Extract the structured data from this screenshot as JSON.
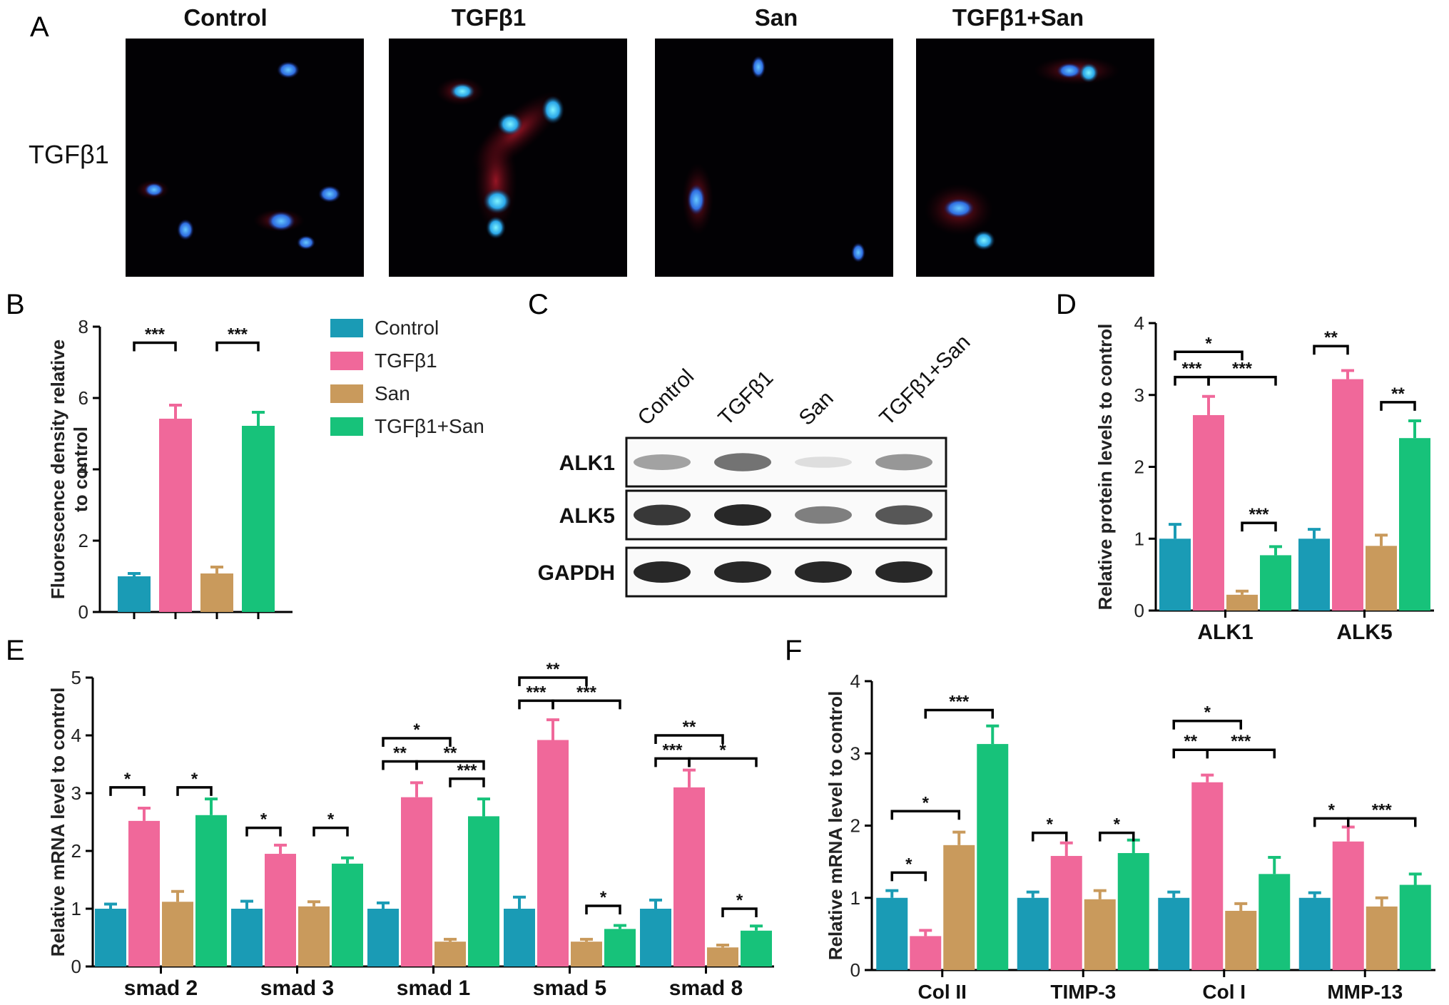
{
  "colors": {
    "Control": "#1a9bb5",
    "TGFβ1": "#f0689a",
    "San": "#c99a5c",
    "TGFβ1+San": "#17c27a"
  },
  "panels": {
    "A": "A",
    "B": "B",
    "C": "C",
    "D": "D",
    "E": "E",
    "F": "F"
  },
  "panelA": {
    "columns": [
      "Control",
      "TGFβ1",
      "San",
      "TGFβ1+San"
    ],
    "row_label": "TGFβ1"
  },
  "legend": [
    "Control",
    "TGFβ1",
    "San",
    "TGFβ1+San"
  ],
  "panelC": {
    "lanes": [
      "Control",
      "TGFβ1",
      "San",
      "TGFβ1+San"
    ],
    "rows": [
      "ALK1",
      "ALK5",
      "GAPDH"
    ],
    "band_intensity": [
      [
        0.55,
        0.75,
        0.2,
        0.6
      ],
      [
        0.95,
        1.0,
        0.7,
        0.85
      ],
      [
        1.0,
        1.0,
        1.0,
        1.0
      ]
    ]
  },
  "chart_data": [
    {
      "id": "B",
      "type": "bar",
      "ylabel": "Fluorescence density relative to control",
      "ylim": [
        0,
        8
      ],
      "yticks": [
        0,
        2,
        4,
        6,
        8
      ],
      "categories": [
        ""
      ],
      "series": [
        {
          "name": "Control",
          "values": [
            1.0
          ],
          "err": [
            0.08
          ]
        },
        {
          "name": "TGFβ1",
          "values": [
            5.42
          ],
          "err": [
            0.38
          ]
        },
        {
          "name": "San",
          "values": [
            1.08
          ],
          "err": [
            0.18
          ]
        },
        {
          "name": "TGFβ1+San",
          "values": [
            5.22
          ],
          "err": [
            0.38
          ]
        }
      ],
      "brackets": [
        {
          "cat": 0,
          "a": 0,
          "b": 1,
          "label": "***",
          "y": 7.55
        },
        {
          "cat": 0,
          "a": 2,
          "b": 3,
          "label": "***",
          "y": 7.55
        }
      ]
    },
    {
      "id": "D",
      "type": "bar",
      "ylabel": "Relative protein levels to control",
      "ylim": [
        0,
        4
      ],
      "yticks": [
        0,
        1,
        2,
        3,
        4
      ],
      "categories": [
        "ALK1",
        "ALK5"
      ],
      "series": [
        {
          "name": "Control",
          "values": [
            1.0,
            1.0
          ],
          "err": [
            0.2,
            0.13
          ]
        },
        {
          "name": "TGFβ1",
          "values": [
            2.72,
            3.22
          ],
          "err": [
            0.26,
            0.12
          ]
        },
        {
          "name": "San",
          "values": [
            0.22,
            0.9
          ],
          "err": [
            0.05,
            0.15
          ]
        },
        {
          "name": "TGFβ1+San",
          "values": [
            0.77,
            2.4
          ],
          "err": [
            0.12,
            0.24
          ]
        }
      ],
      "brackets": [
        {
          "cat": 0,
          "a": 0,
          "b": 2,
          "label": "*",
          "y": 3.6
        },
        {
          "cat": 0,
          "a": 0,
          "b": 1,
          "label": "***",
          "y": 3.25
        },
        {
          "cat": 0,
          "a": 1,
          "b": 3,
          "label": "***",
          "y": 3.25
        },
        {
          "cat": 0,
          "a": 2,
          "b": 3,
          "label": "***",
          "y": 1.22
        },
        {
          "cat": 1,
          "a": 0,
          "b": 1,
          "label": "**",
          "y": 3.68
        },
        {
          "cat": 1,
          "a": 2,
          "b": 3,
          "label": "**",
          "y": 2.9
        }
      ]
    },
    {
      "id": "E",
      "type": "bar",
      "ylabel": "Relative mRNA level to control",
      "ylim": [
        0,
        5
      ],
      "yticks": [
        0,
        1,
        2,
        3,
        4,
        5
      ],
      "categories": [
        "smad 2",
        "smad 3",
        "smad 1",
        "smad 5",
        "smad 8"
      ],
      "series": [
        {
          "name": "Control",
          "values": [
            1.0,
            1.0,
            1.0,
            1.0,
            1.0
          ],
          "err": [
            0.08,
            0.13,
            0.1,
            0.2,
            0.15
          ]
        },
        {
          "name": "TGFβ1",
          "values": [
            2.52,
            1.95,
            2.93,
            3.92,
            3.1
          ],
          "err": [
            0.22,
            0.15,
            0.25,
            0.35,
            0.3
          ]
        },
        {
          "name": "San",
          "values": [
            1.12,
            1.04,
            0.43,
            0.43,
            0.33
          ],
          "err": [
            0.18,
            0.08,
            0.04,
            0.04,
            0.04
          ]
        },
        {
          "name": "TGFβ1+San",
          "values": [
            2.62,
            1.78,
            2.6,
            0.65,
            0.62
          ],
          "err": [
            0.28,
            0.1,
            0.3,
            0.06,
            0.08
          ]
        }
      ],
      "brackets": [
        {
          "cat": 0,
          "a": 0,
          "b": 1,
          "label": "*",
          "y": 3.1
        },
        {
          "cat": 0,
          "a": 2,
          "b": 3,
          "label": "*",
          "y": 3.1
        },
        {
          "cat": 1,
          "a": 0,
          "b": 1,
          "label": "*",
          "y": 2.4
        },
        {
          "cat": 1,
          "a": 2,
          "b": 3,
          "label": "*",
          "y": 2.4
        },
        {
          "cat": 2,
          "a": 0,
          "b": 2,
          "label": "*",
          "y": 3.95
        },
        {
          "cat": 2,
          "a": 0,
          "b": 1,
          "label": "**",
          "y": 3.55
        },
        {
          "cat": 2,
          "a": 1,
          "b": 3,
          "label": "**",
          "y": 3.55
        },
        {
          "cat": 2,
          "a": 2,
          "b": 3,
          "label": "***",
          "y": 3.25
        },
        {
          "cat": 3,
          "a": 0,
          "b": 2,
          "label": "**",
          "y": 5.0
        },
        {
          "cat": 3,
          "a": 0,
          "b": 1,
          "label": "***",
          "y": 4.6
        },
        {
          "cat": 3,
          "a": 1,
          "b": 3,
          "label": "***",
          "y": 4.6
        },
        {
          "cat": 3,
          "a": 2,
          "b": 3,
          "label": "*",
          "y": 1.05
        },
        {
          "cat": 4,
          "a": 0,
          "b": 2,
          "label": "**",
          "y": 4.0
        },
        {
          "cat": 4,
          "a": 0,
          "b": 1,
          "label": "***",
          "y": 3.6
        },
        {
          "cat": 4,
          "a": 1,
          "b": 3,
          "label": "*",
          "y": 3.6
        },
        {
          "cat": 4,
          "a": 2,
          "b": 3,
          "label": "*",
          "y": 1.0
        }
      ]
    },
    {
      "id": "F",
      "type": "bar",
      "ylabel": "Relative mRNA level to control",
      "ylim": [
        0,
        4
      ],
      "yticks": [
        0,
        1,
        2,
        3,
        4
      ],
      "categories": [
        "Col II",
        "TIMP-3",
        "Col I",
        "MMP-13"
      ],
      "series": [
        {
          "name": "Control",
          "values": [
            1.0,
            1.0,
            1.0,
            1.0
          ],
          "err": [
            0.1,
            0.08,
            0.08,
            0.07
          ]
        },
        {
          "name": "TGFβ1",
          "values": [
            0.47,
            1.58,
            2.6,
            1.78
          ],
          "err": [
            0.08,
            0.18,
            0.1,
            0.2
          ]
        },
        {
          "name": "San",
          "values": [
            1.73,
            0.98,
            0.82,
            0.88
          ],
          "err": [
            0.18,
            0.12,
            0.1,
            0.12
          ]
        },
        {
          "name": "TGFβ1+San",
          "values": [
            3.13,
            1.62,
            1.33,
            1.18
          ],
          "err": [
            0.25,
            0.18,
            0.23,
            0.15
          ]
        }
      ],
      "brackets": [
        {
          "cat": 0,
          "a": 0,
          "b": 2,
          "label": "*",
          "y": 2.2
        },
        {
          "cat": 0,
          "a": 0,
          "b": 1,
          "label": "*",
          "y": 1.35
        },
        {
          "cat": 0,
          "a": 1,
          "b": 3,
          "label": "***",
          "y": 3.6
        },
        {
          "cat": 1,
          "a": 0,
          "b": 1,
          "label": "*",
          "y": 1.9
        },
        {
          "cat": 1,
          "a": 2,
          "b": 3,
          "label": "*",
          "y": 1.9
        },
        {
          "cat": 2,
          "a": 0,
          "b": 2,
          "label": "*",
          "y": 3.45
        },
        {
          "cat": 2,
          "a": 0,
          "b": 1,
          "label": "**",
          "y": 3.05
        },
        {
          "cat": 2,
          "a": 1,
          "b": 3,
          "label": "***",
          "y": 3.05
        },
        {
          "cat": 3,
          "a": 0,
          "b": 1,
          "label": "*",
          "y": 2.1
        },
        {
          "cat": 3,
          "a": 1,
          "b": 3,
          "label": "***",
          "y": 2.1
        }
      ]
    }
  ]
}
